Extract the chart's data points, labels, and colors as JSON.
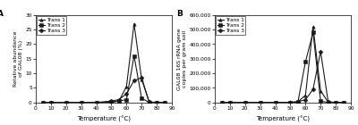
{
  "panel_A": {
    "label": "A",
    "xlabel": "Temperature (°C)",
    "ylabel": "Relative abundance\nof GAL08 (%)",
    "xlim": [
      0,
      90
    ],
    "ylim": [
      0,
      30
    ],
    "xticks": [
      0,
      10,
      20,
      30,
      40,
      50,
      60,
      70,
      80,
      90
    ],
    "yticks": [
      0,
      5,
      10,
      15,
      20,
      25,
      30
    ],
    "trans1": {
      "x": [
        5,
        10,
        20,
        30,
        40,
        50,
        55,
        60,
        65,
        70,
        75,
        80,
        85
      ],
      "y": [
        0,
        0,
        0,
        0,
        0,
        0.2,
        0.5,
        5.5,
        27.0,
        8.0,
        0.1,
        0,
        0
      ],
      "marker": "^",
      "label": "Trans 1"
    },
    "trans2": {
      "x": [
        5,
        10,
        20,
        30,
        40,
        50,
        55,
        60,
        65,
        70,
        75,
        80,
        85
      ],
      "y": [
        0,
        0,
        0,
        0,
        0,
        0.1,
        0.5,
        1.0,
        16.0,
        1.5,
        0.0,
        0,
        0
      ],
      "marker": "s",
      "label": "Trans 2"
    },
    "trans3": {
      "x": [
        5,
        10,
        20,
        30,
        40,
        50,
        55,
        60,
        65,
        70,
        75,
        80,
        85
      ],
      "y": [
        0,
        0,
        0,
        0,
        0,
        0.5,
        1.0,
        3.0,
        7.5,
        8.5,
        0.2,
        0,
        0
      ],
      "marker": "D",
      "label": "Trans 3"
    }
  },
  "panel_B": {
    "label": "B",
    "xlabel": "Temperature (°C)",
    "ylabel": "GAL08 16S rRNA gene\ncopies per gram soil",
    "xlim": [
      0,
      90
    ],
    "ylim": [
      0,
      600000
    ],
    "xticks": [
      0,
      10,
      20,
      30,
      40,
      50,
      60,
      70,
      80,
      90
    ],
    "yticks": [
      0,
      100000,
      200000,
      300000,
      400000,
      500000,
      600000
    ],
    "ytick_labels": [
      "0",
      "100,000",
      "200,000",
      "300,000",
      "400,000",
      "500,000",
      "600,000"
    ],
    "trans1": {
      "x": [
        5,
        10,
        20,
        30,
        40,
        50,
        55,
        60,
        65,
        70,
        75,
        80,
        85
      ],
      "y": [
        0,
        0,
        0,
        0,
        0,
        2000,
        5000,
        50000,
        520000,
        80000,
        2000,
        0,
        0
      ],
      "marker": "^",
      "label": "Trans 1"
    },
    "trans2": {
      "x": [
        5,
        10,
        20,
        30,
        40,
        50,
        55,
        60,
        65,
        70,
        75,
        80,
        85
      ],
      "y": [
        0,
        0,
        0,
        0,
        0,
        1000,
        3000,
        280000,
        480000,
        10000,
        0,
        0,
        0
      ],
      "marker": "s",
      "label": "Trans 2"
    },
    "trans3": {
      "x": [
        5,
        10,
        20,
        30,
        40,
        50,
        55,
        60,
        65,
        70,
        75,
        80,
        85
      ],
      "y": [
        0,
        0,
        0,
        0,
        0,
        1000,
        5000,
        20000,
        90000,
        350000,
        5000,
        0,
        0
      ],
      "marker": "D",
      "label": "Trans 3"
    }
  },
  "line_color": "#1a1a1a",
  "marker_size": 2.5,
  "line_width": 0.8,
  "font_size": 5.0,
  "label_font_size": 4.5,
  "tick_font_size": 4.2,
  "legend_font_size": 4.2,
  "panel_label_size": 6.5
}
